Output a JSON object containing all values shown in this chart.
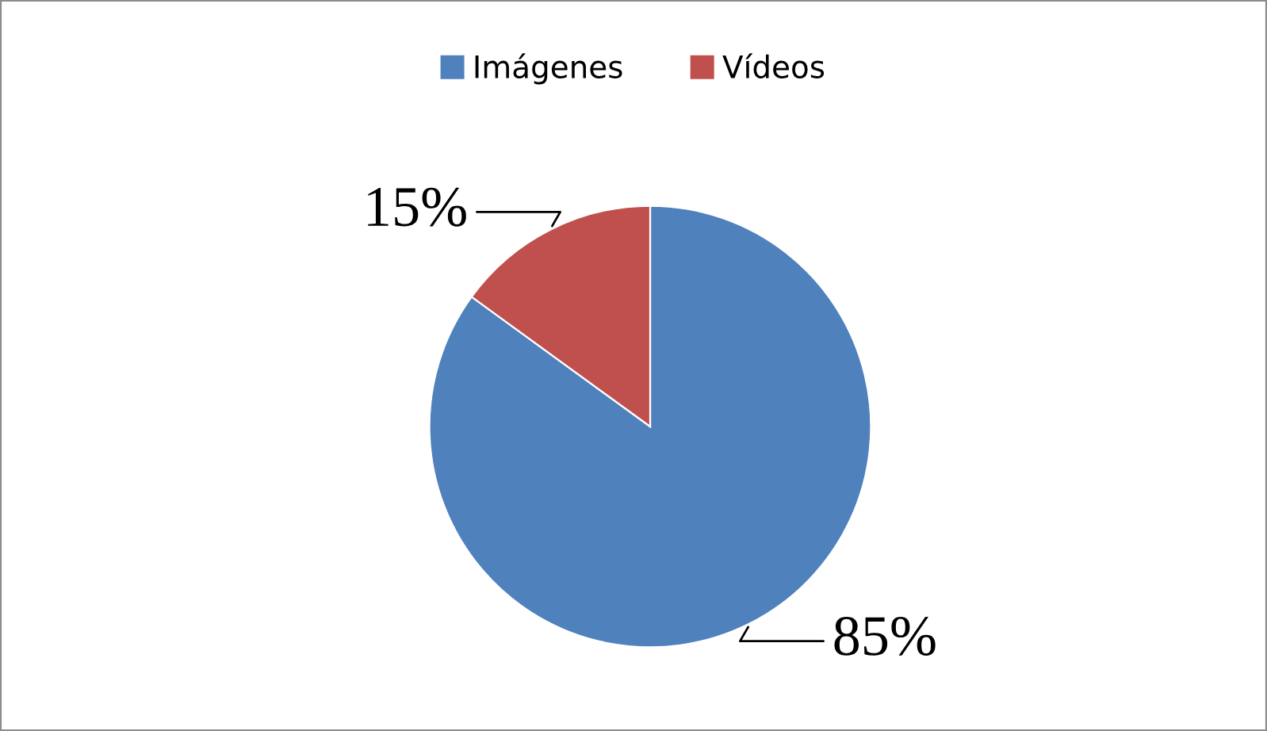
{
  "chart_data": {
    "type": "pie",
    "categories": [
      "Imágenes",
      "Vídeos"
    ],
    "values": [
      85,
      15
    ],
    "colors": [
      "#4f81bd",
      "#c0504d"
    ],
    "value_labels": [
      "85%",
      "15%"
    ],
    "legend": "top"
  }
}
